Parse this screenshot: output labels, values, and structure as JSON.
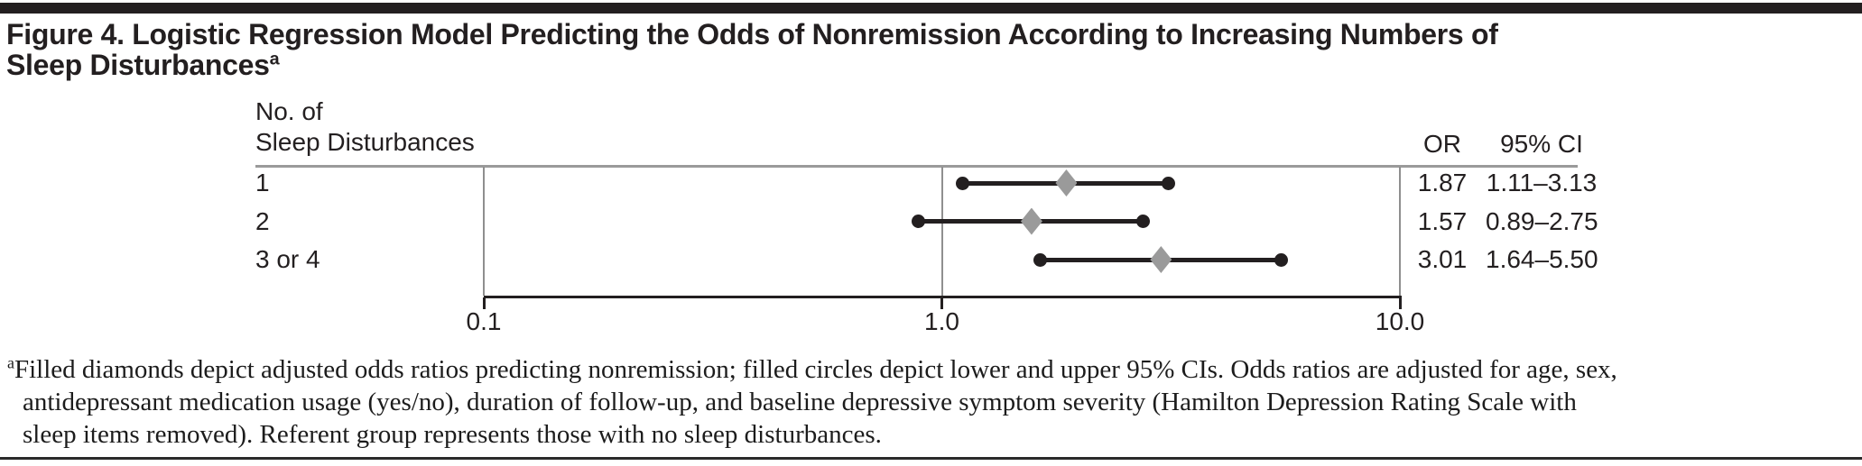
{
  "title": {
    "line1": "Figure 4. Logistic Regression Model Predicting the Odds of Nonremission According to Increasing Numbers of",
    "line2": "Sleep Disturbances",
    "superscript": "a"
  },
  "chart_data": {
    "type": "scatter",
    "subtype": "forest-plot",
    "title": "Logistic regression model predicting odds of nonremission by number of sleep disturbances",
    "row_header": {
      "line1": "No. of",
      "line2": "Sleep Disturbances"
    },
    "columns": {
      "or_label": "OR",
      "ci_label": "95% CI"
    },
    "x_axis": {
      "scale": "log10",
      "min": 0.1,
      "max": 10.0,
      "reference_line": 1.0,
      "ticks": [
        {
          "value": 0.1,
          "label": "0.1"
        },
        {
          "value": 1.0,
          "label": "1.0"
        },
        {
          "value": 10.0,
          "label": "10.0"
        }
      ]
    },
    "rows": [
      {
        "label": "1",
        "or": 1.87,
        "ci_low": 1.11,
        "ci_high": 3.13,
        "or_text": "1.87",
        "ci_text": "1.11–3.13"
      },
      {
        "label": "2",
        "or": 1.57,
        "ci_low": 0.89,
        "ci_high": 2.75,
        "or_text": "1.57",
        "ci_text": "0.89–2.75"
      },
      {
        "label": "3 or 4",
        "or": 3.01,
        "ci_low": 1.64,
        "ci_high": 5.5,
        "or_text": "3.01",
        "ci_text": "1.64–5.50"
      }
    ],
    "legend": "Filled diamonds = adjusted odds ratios; filled circles = lower and upper 95% CI bounds",
    "colors": {
      "marker_line": "#231f20",
      "ci_circle": "#231f20",
      "or_diamond": "#9a9a9a",
      "grid": "#8f8f8f"
    }
  },
  "footnote": {
    "marker": "a",
    "lines": [
      "Filled diamonds depict adjusted odds ratios predicting nonremission; filled circles depict lower and upper 95% CIs. Odds ratios are adjusted for age, sex,",
      "antidepressant medication usage (yes/no), duration of follow-up, and baseline depressive symptom severity (Hamilton Depression Rating Scale with",
      "sleep items removed). Referent group represents those with no sleep disturbances."
    ]
  },
  "colors": {
    "ink": "#231f20",
    "rule_gray": "#9a9a9a",
    "top_bar": "#231f20"
  }
}
